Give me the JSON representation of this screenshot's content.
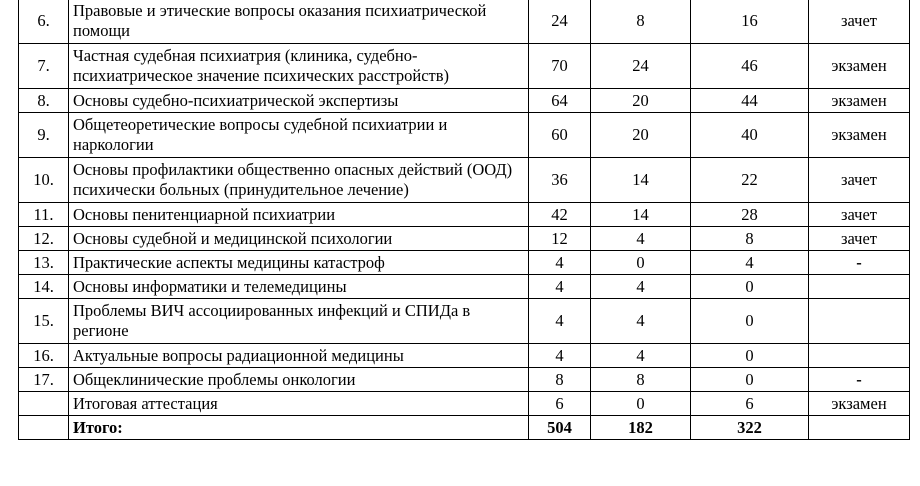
{
  "table": {
    "rows": [
      {
        "num": "6.",
        "name": "Правовые и этические вопросы оказания психиатрической помощи",
        "total": 24,
        "c1": 8,
        "c2": 16,
        "control": "зачет"
      },
      {
        "num": "7.",
        "name": "Частная судебная психиатрия (клиника, судебно-психиатрическое значение психических расстройств)",
        "total": 70,
        "c1": 24,
        "c2": 46,
        "control": "экзамен"
      },
      {
        "num": "8.",
        "name": "Основы судебно-психиатрической экспертизы",
        "total": 64,
        "c1": 20,
        "c2": 44,
        "control": "экзамен"
      },
      {
        "num": "9.",
        "name": "Общетеоретические вопросы судебной  психиатрии и наркологии",
        "total": 60,
        "c1": 20,
        "c2": 40,
        "control": "экзамен"
      },
      {
        "num": "10.",
        "name": "Основы профилактики общественно опасных действий (ООД) психически больных (принудительное лечение)",
        "total": 36,
        "c1": 14,
        "c2": 22,
        "control": "зачет"
      },
      {
        "num": "11.",
        "name": "Основы пенитенциарной психиатрии",
        "total": 42,
        "c1": 14,
        "c2": 28,
        "control": "зачет"
      },
      {
        "num": "12.",
        "name": "Основы судебной и медицинской психологии",
        "total": 12,
        "c1": 4,
        "c2": 8,
        "control": "зачет"
      },
      {
        "num": "13.",
        "name": "Практические аспекты медицины катастроф",
        "total": 4,
        "c1": 0,
        "c2": 4,
        "control": "-"
      },
      {
        "num": "14.",
        "name": "Основы информатики и телемедицины",
        "total": 4,
        "c1": 4,
        "c2": 0
      },
      {
        "num": "15.",
        "name": "Проблемы ВИЧ ассоциированных инфекций и СПИДа в регионе",
        "total": 4,
        "c1": 4,
        "c2": 0
      },
      {
        "num": "16.",
        "name": "Актуальные вопросы радиационной медицины",
        "total": 4,
        "c1": 4,
        "c2": 0
      },
      {
        "num": "17.",
        "name": "Общеклинические проблемы онкологии",
        "total": 8,
        "c1": 8,
        "c2": 0,
        "control": "-"
      },
      {
        "name": "Итоговая аттестация",
        "total": 6,
        "c1": 0,
        "c2": 6,
        "control": "экзамен"
      },
      {
        "name": "Итого:",
        "total": 504,
        "c1": 182,
        "c2": 322
      }
    ]
  }
}
